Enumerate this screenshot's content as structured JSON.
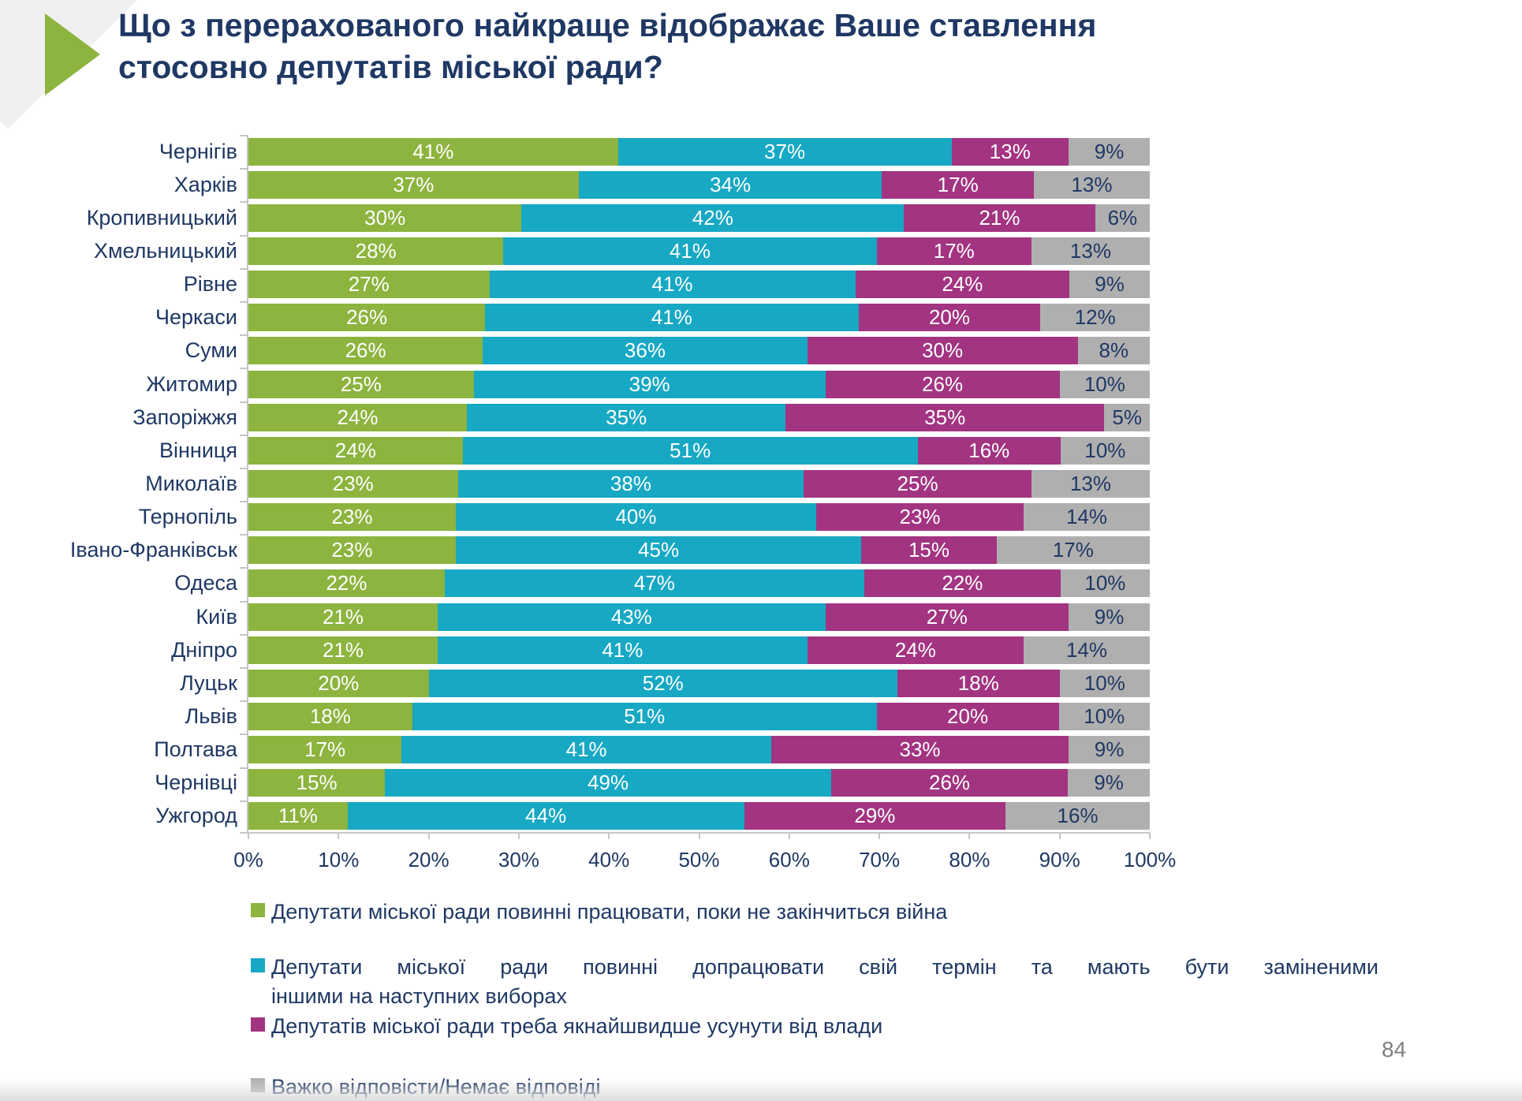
{
  "slide": {
    "title_lines": [
      "Що з перерахованого найкраще відображає Ваше ставлення",
      "стосовно депутатів міської ради?"
    ],
    "page_number": "84"
  },
  "colors": {
    "green": "#8cb43f",
    "blue": "#17a8c4",
    "magenta": "#a23481",
    "gray": "#afafaf",
    "text_navy": "#1f3864",
    "axis_gray": "#c6c6c6"
  },
  "chart_data": {
    "type": "bar",
    "stacked": true,
    "orientation": "horizontal",
    "value_suffix": "%",
    "xlim": [
      0,
      100
    ],
    "x_ticks": [
      "0%",
      "10%",
      "20%",
      "30%",
      "40%",
      "50%",
      "60%",
      "70%",
      "80%",
      "90%",
      "100%"
    ],
    "grid": false,
    "legend_position": "bottom",
    "categories": [
      "Чернігів",
      "Харків",
      "Кропивницький",
      "Хмельницький",
      "Рівне",
      "Черкаси",
      "Суми",
      "Житомир",
      "Запоріжжя",
      "Вінниця",
      "Миколаїв",
      "Тернопіль",
      "Івано-Франківськ",
      "Одеса",
      "Київ",
      "Дніпро",
      "Луцьк",
      "Львів",
      "Полтава",
      "Чернівці",
      "Ужгород"
    ],
    "series": [
      {
        "name": "Депутати міської ради повинні працювати, поки не закінчиться війна",
        "color": "#8cb43f",
        "values": [
          41,
          37,
          30,
          28,
          27,
          26,
          26,
          25,
          24,
          24,
          23,
          23,
          23,
          22,
          21,
          21,
          20,
          18,
          17,
          15,
          11
        ]
      },
      {
        "name": "Депутати міської ради повинні допрацювати свій термін та мають бути заміненими іншими на наступних виборах",
        "color": "#17a8c4",
        "values": [
          37,
          34,
          42,
          41,
          41,
          41,
          36,
          39,
          35,
          51,
          38,
          40,
          45,
          47,
          43,
          41,
          52,
          51,
          41,
          49,
          44
        ]
      },
      {
        "name": "Депутатів міської ради треба якнайшвидше усунути від влади",
        "color": "#a23481",
        "values": [
          13,
          17,
          21,
          17,
          24,
          20,
          30,
          26,
          35,
          16,
          25,
          23,
          15,
          22,
          27,
          24,
          18,
          20,
          33,
          26,
          29
        ]
      },
      {
        "name": "Важко відповісти/Немає відповіді",
        "color": "#afafaf",
        "values": [
          9,
          13,
          6,
          13,
          9,
          12,
          8,
          10,
          5,
          10,
          13,
          14,
          17,
          10,
          9,
          14,
          10,
          10,
          9,
          9,
          16
        ]
      }
    ]
  },
  "legend": {
    "items": [
      {
        "color": "#8cb43f",
        "lines": [
          "Депутати міської ради повинні працювати, поки не закінчиться війна"
        ]
      },
      {
        "color": "#17a8c4",
        "lines": [
          "Депутати міської ради повинні допрацювати свій термін та мають бути заміненими",
          "іншими на наступних виборах"
        ]
      },
      {
        "color": "#a23481",
        "lines": [
          "Депутатів міської ради треба якнайшвидше усунути від влади"
        ]
      },
      {
        "color": "#afafaf",
        "lines": [
          "Важко відповісти/Немає відповіді"
        ]
      }
    ]
  }
}
